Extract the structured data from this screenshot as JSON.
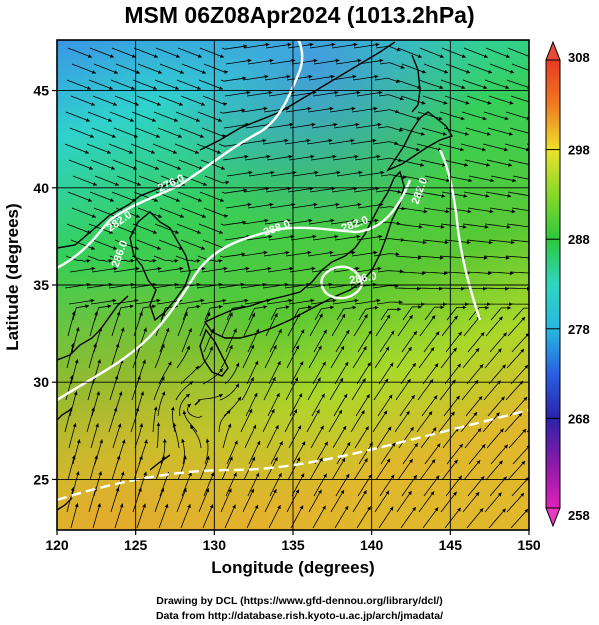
{
  "title": "MSM 06Z08Apr2024 (1013.2hPa)",
  "axes": {
    "xlabel": "Longitude (degrees)",
    "ylabel": "Latitude  (degrees)",
    "xticks": [
      "120",
      "125",
      "130",
      "135",
      "140",
      "145",
      "150"
    ],
    "yticks": [
      "25",
      "30",
      "35",
      "40",
      "45"
    ],
    "xlim": [
      120,
      150
    ],
    "ylim": [
      22.4,
      47.6
    ]
  },
  "colorbar": {
    "min_label": "258",
    "max_label": "308",
    "ticks": [
      "308",
      "298",
      "288",
      "278",
      "268",
      "258"
    ],
    "range": [
      258,
      308
    ]
  },
  "contours": {
    "labels": [
      "276.0",
      "282.0",
      "286.0",
      "288.0",
      "282.0",
      "286.0",
      "282.0"
    ],
    "color": "#ffffff"
  },
  "colors": {
    "cold": "#3a8fe8",
    "cyan": "#2fd6c6",
    "green": "#39c83a",
    "yellow_green": "#a8dc2a",
    "orange": "#e8b02a",
    "land_outline": "#000000",
    "streamline": "#000000"
  },
  "credits": {
    "line1": "Drawing by DCL (https://www.gfd-dennou.org/library/dcl/)",
    "line2": "Data from http://database.rish.kyoto-u.ac.jp/arch/jmadata/"
  }
}
